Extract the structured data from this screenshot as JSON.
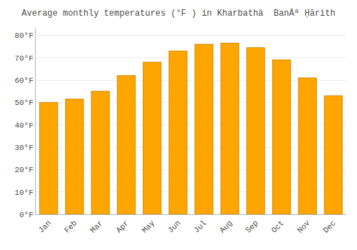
{
  "chart_data": {
    "type": "bar",
    "title": "Average monthly temperatures (°F ) in Kharbathä  BanÄª Ḥārith",
    "categories": [
      "Jan",
      "Feb",
      "Mar",
      "Apr",
      "May",
      "Jun",
      "Jul",
      "Aug",
      "Sep",
      "Oct",
      "Nov",
      "Dec"
    ],
    "values": [
      50,
      51.5,
      55,
      62,
      68,
      73,
      76,
      76.5,
      74.5,
      69,
      61,
      53
    ],
    "color": "#FFA500",
    "ylim": [
      0,
      83
    ],
    "yticks": [
      {
        "value": 0,
        "label": "0°F"
      },
      {
        "value": 10,
        "label": "10°F"
      },
      {
        "value": 20,
        "label": "20°F"
      },
      {
        "value": 30,
        "label": "30°F"
      },
      {
        "value": 40,
        "label": "40°F"
      },
      {
        "value": 50,
        "label": "50°F"
      },
      {
        "value": 60,
        "label": "60°F"
      },
      {
        "value": 70,
        "label": "70°F"
      },
      {
        "value": 80,
        "label": "80°F"
      }
    ],
    "grid": true
  }
}
